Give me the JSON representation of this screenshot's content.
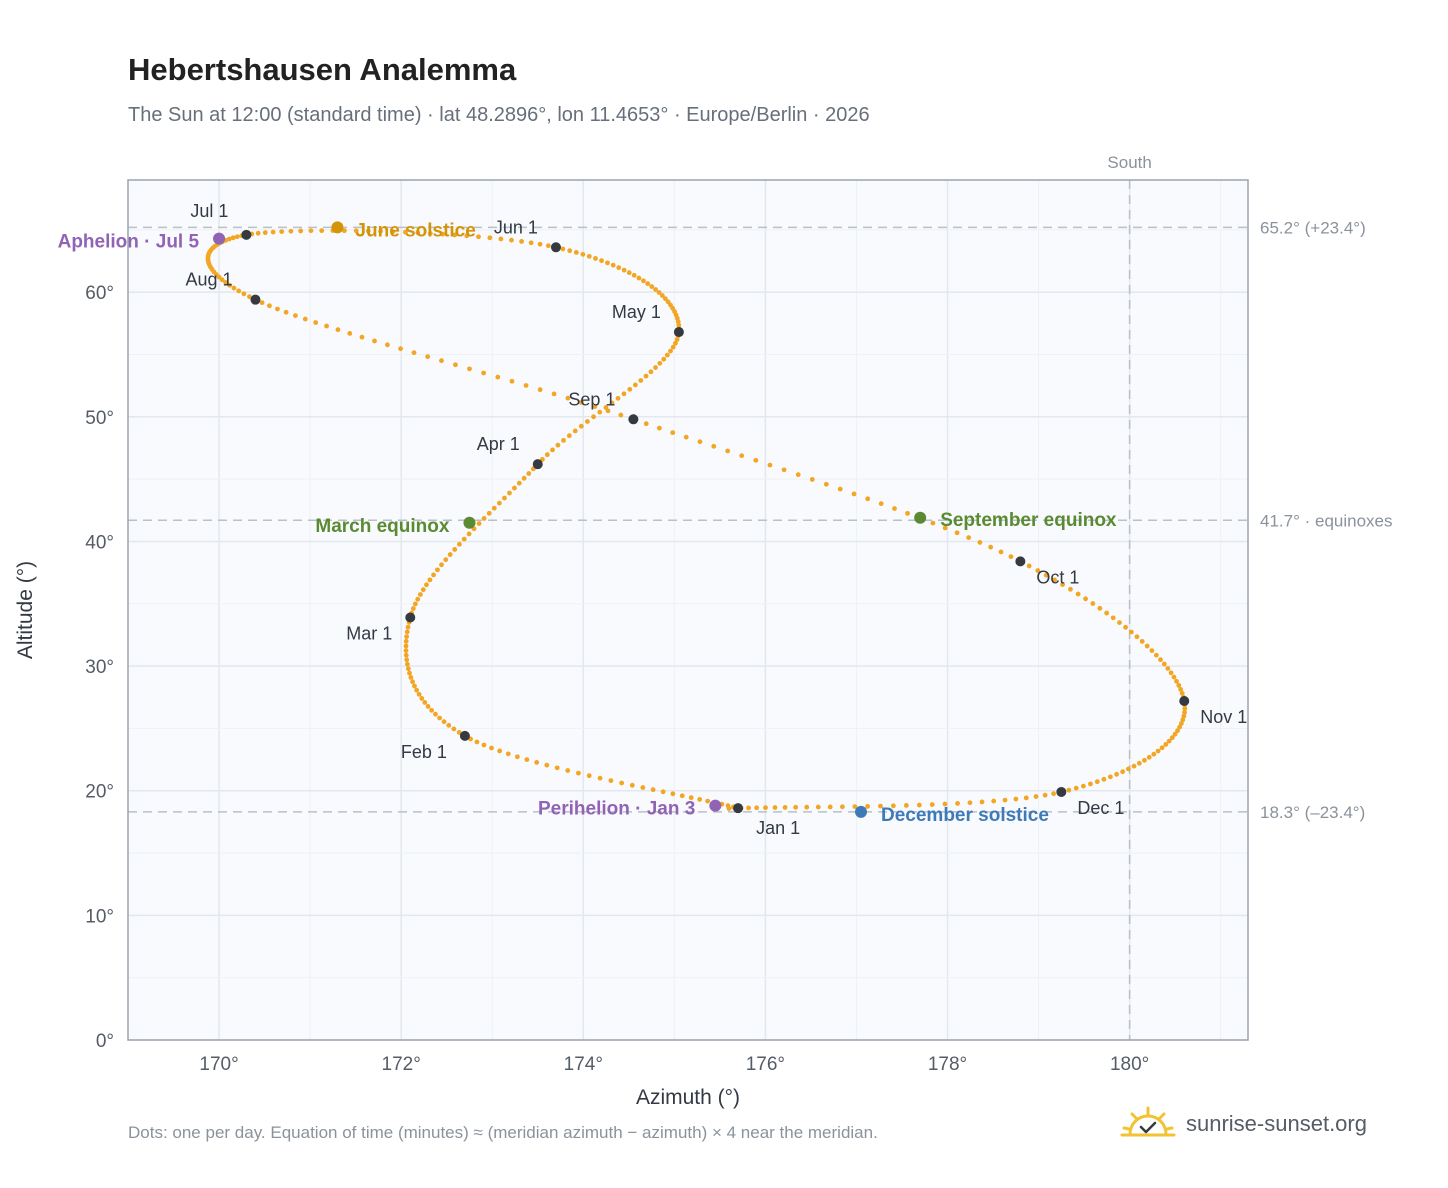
{
  "title": "Hebertshausen Analemma",
  "subtitle": "The Sun at 12:00 (standard time) · lat 48.2896°, lon 11.4653° · Europe/Berlin · 2026",
  "footnote": "Dots: one per day. Equation of time (minutes) ≈ (meridian azimuth − azimuth) × 4 near the meridian.",
  "brand": {
    "name": "sunrise-sunset.org",
    "icon": "sun-logo-icon"
  },
  "colors": {
    "curve": "#f2a623",
    "month_dot": "#343a40",
    "june_solstice": "#d4940a",
    "equinox": "#5a8a32",
    "december_solstice": "#3d7ab8",
    "apsis": "#9063b5",
    "plot_bg": "#f8fafd",
    "grid": "#e3e8ee",
    "axis_text": "#555c66",
    "ref_line": "#b8c0c8"
  },
  "chart_data": {
    "type": "scatter",
    "title": "Hebertshausen Analemma",
    "xlabel": "Azimuth (°)",
    "ylabel": "Altitude (°)",
    "xlim": [
      169,
      181.3
    ],
    "ylim": [
      0,
      69
    ],
    "x_ticks": [
      170,
      172,
      174,
      176,
      178,
      180
    ],
    "x_tick_labels": [
      "170°",
      "172°",
      "174°",
      "176°",
      "178°",
      "180°"
    ],
    "y_ticks": [
      0,
      10,
      20,
      30,
      40,
      50,
      60
    ],
    "y_tick_labels": [
      "0°",
      "10°",
      "20°",
      "30°",
      "40°",
      "50°",
      "60°"
    ],
    "grid": true,
    "meridian": {
      "azimuth": 180,
      "label": "South"
    },
    "reference_lines": [
      {
        "altitude": 65.2,
        "label": "65.2° (+23.4°)"
      },
      {
        "altitude": 41.7,
        "label": "41.7° · equinoxes"
      },
      {
        "altitude": 18.3,
        "label": "18.3° (–23.4°)"
      }
    ],
    "series": [
      {
        "points": [
          [
            175.7,
            18.6
          ],
          [
            172.7,
            24.4
          ],
          [
            172.1,
            33.9
          ],
          [
            173.5,
            46.2
          ],
          [
            175.05,
            56.8
          ],
          [
            173.7,
            63.6
          ],
          [
            170.3,
            64.6
          ],
          [
            170.4,
            59.4
          ],
          [
            174.55,
            49.8
          ],
          [
            178.8,
            38.4
          ],
          [
            180.6,
            27.2
          ],
          [
            179.25,
            19.9
          ],
          [
            175.6,
            18.57
          ]
        ]
      }
    ],
    "month_markers": [
      {
        "label": "Jan 1",
        "azimuth": 175.7,
        "altitude": 18.6
      },
      {
        "label": "Feb 1",
        "azimuth": 172.7,
        "altitude": 24.4
      },
      {
        "label": "Mar 1",
        "azimuth": 172.1,
        "altitude": 33.9
      },
      {
        "label": "Apr 1",
        "azimuth": 173.5,
        "altitude": 46.2
      },
      {
        "label": "May 1",
        "azimuth": 175.05,
        "altitude": 56.8
      },
      {
        "label": "Jun 1",
        "azimuth": 173.7,
        "altitude": 63.6
      },
      {
        "label": "Jul 1",
        "azimuth": 170.3,
        "altitude": 64.6
      },
      {
        "label": "Aug 1",
        "azimuth": 170.4,
        "altitude": 59.4
      },
      {
        "label": "Sep 1",
        "azimuth": 174.55,
        "altitude": 49.8
      },
      {
        "label": "Oct 1",
        "azimuth": 178.8,
        "altitude": 38.4
      },
      {
        "label": "Nov 1",
        "azimuth": 180.6,
        "altitude": 27.2
      },
      {
        "label": "Dec 1",
        "azimuth": 179.25,
        "altitude": 19.9
      }
    ],
    "annotations": [
      {
        "label": "June solstice",
        "azimuth": 171.3,
        "altitude": 65.2,
        "kind": "june_solstice"
      },
      {
        "label": "March equinox",
        "azimuth": 172.75,
        "altitude": 41.5,
        "kind": "equinox"
      },
      {
        "label": "September equinox",
        "azimuth": 177.7,
        "altitude": 41.9,
        "kind": "equinox"
      },
      {
        "label": "December solstice",
        "azimuth": 177.05,
        "altitude": 18.3,
        "kind": "december_solstice"
      },
      {
        "label": "Aphelion · Jul 5",
        "azimuth": 170.0,
        "altitude": 64.3,
        "kind": "apsis"
      },
      {
        "label": "Perihelion · Jan 3",
        "azimuth": 175.45,
        "altitude": 18.8,
        "kind": "apsis"
      }
    ]
  }
}
